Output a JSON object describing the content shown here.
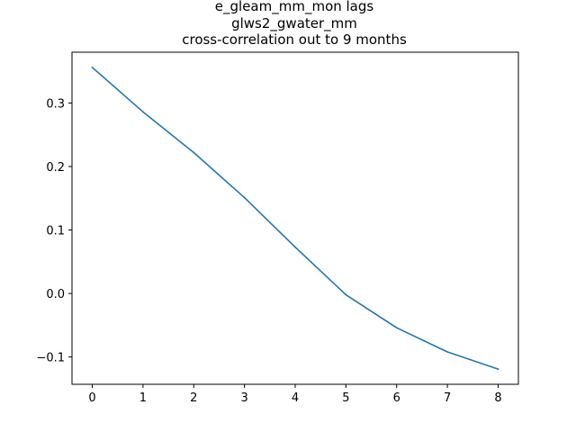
{
  "chart_data": {
    "type": "line",
    "title_lines": [
      "e_gleam_mm_mon lags",
      "glws2_gwater_mm",
      "cross-correlation out to 9 months"
    ],
    "xlabel": "",
    "ylabel": "",
    "x": [
      0,
      1,
      2,
      3,
      4,
      5,
      6,
      7,
      8
    ],
    "series": [
      {
        "values": [
          0.356,
          0.286,
          0.222,
          0.151,
          0.073,
          -0.002,
          -0.054,
          -0.092,
          -0.119
        ],
        "color": "#1f77b4"
      }
    ],
    "xlim": [
      -0.4,
      8.4
    ],
    "ylim": [
      -0.143,
      0.38
    ],
    "xticks": [
      0,
      1,
      2,
      3,
      4,
      5,
      6,
      7,
      8
    ],
    "xtick_labels": [
      "0",
      "1",
      "2",
      "3",
      "4",
      "5",
      "6",
      "7",
      "8"
    ],
    "yticks": [
      -0.1,
      0.0,
      0.1,
      0.2,
      0.3
    ],
    "ytick_labels": [
      "−0.1",
      "0.0",
      "0.1",
      "0.2",
      "0.3"
    ],
    "grid": false,
    "legend": "none"
  }
}
